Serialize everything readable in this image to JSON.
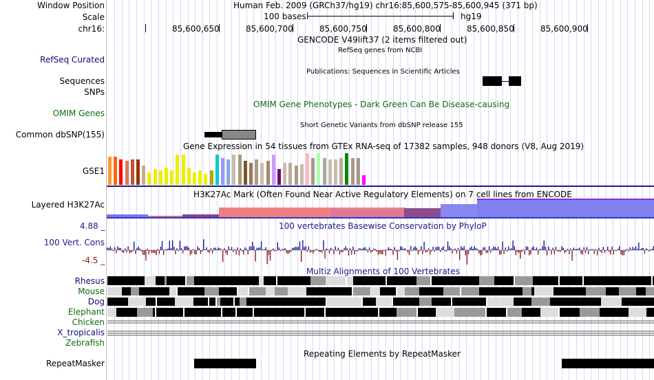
{
  "header": {
    "window_position_label": "Window Position",
    "window_position_value": "Human Feb. 2009 (GRCh37/hg19)   chr16:85,600,575-85,600,945 (371 bp)",
    "scale_label": "Scale",
    "scale_bases": "100 bases",
    "scale_assembly": "hg19",
    "chrom_label": "chr16:",
    "ruler_ticks": [
      "85,600,650",
      "85,600,700",
      "85,600,750",
      "85,600,800",
      "85,600,850",
      "85,600,900"
    ]
  },
  "tracks": {
    "gencode_title": "GENCODE V49lift37 (2 items filtered out)",
    "refseq_label": "RefSeq Curated",
    "refseq_title": "RefSeq genes from NCBI",
    "publications_title": "Publications: Sequences in Scientific Articles",
    "sequences_label": "Sequences",
    "snps_label": "SNPs",
    "omim_label": "OMIM Genes",
    "omim_title": "OMIM Gene Phenotypes - Dark Green Can Be Disease-causing",
    "dbsnp_title": "Short Genetic Variants from dbSNP release 155",
    "dbsnp_label": "Common dbSNP(155)",
    "gtex_title": "Gene Expression in 54 tissues from GTEx RNA-seq of 17382 samples, 948 donors (V8, Aug 2019)",
    "gtex_label": "GSE1",
    "h3k27ac_label": "Layered H3K27Ac",
    "h3k27ac_title": "H3K27Ac Mark (Often Found Near Active Regulatory Elements) on 7 cell lines from ENCODE",
    "cons_max": "4.88 _",
    "cons_label": "100 Vert. Cons",
    "cons_title": "100 vertebrates Basewise Conservation by PhyloP",
    "cons_min": "-4.5 _",
    "multiz_title": "Multiz Alignments of 100 Vertebrates",
    "species": [
      "Rhesus",
      "Mouse",
      "Dog",
      "Elephant",
      "Chicken",
      "X_tropicalis",
      "Zebrafish"
    ],
    "repeat_title": "Repeating Elements by RepeatMasker",
    "repeat_label": "RepeatMasker"
  },
  "gtex_colors": [
    "#ff9933",
    "#ff6600",
    "#ff0000",
    "#dd7755",
    "#bb5533",
    "#993300",
    "#ccaa88",
    "#eeee00",
    "#eeee00",
    "#eeee00",
    "#eeee00",
    "#eeee00",
    "#eeee00",
    "#eeee00",
    "#eeee00",
    "#eeee00",
    "#eeee00",
    "#eeee00",
    "#aaaa00",
    "#00cccc",
    "#9999ff",
    "#88aadd",
    "#ccbbaa",
    "#aa9977",
    "#775533",
    "#997755",
    "#aa9988",
    "#ccbbaa",
    "#aa8866",
    "#cc99ff",
    "#770077",
    "#ccbbaa",
    "#bbaa99",
    "#aa9988",
    "#ccbbaa",
    "#ffbbbb",
    "#aa9988",
    "#aaffaa",
    "#aaaa99",
    "#ccbbaa",
    "#ccbbaa",
    "#bbaa99",
    "#008800",
    "#aa9988",
    "#aa9988",
    "#ff00ff"
  ],
  "gtex_values": [
    0.9,
    0.9,
    0.8,
    0.75,
    0.8,
    0.8,
    0.6,
    0.4,
    0.5,
    0.45,
    0.55,
    0.45,
    0.95,
    0.95,
    0.55,
    0.4,
    0.45,
    0.35,
    0.45,
    0.95,
    0.85,
    0.8,
    0.95,
    0.95,
    0.75,
    0.7,
    0.8,
    0.7,
    0.75,
    0.95,
    0.5,
    0.7,
    0.7,
    0.6,
    0.65,
    1.0,
    0.85,
    1.0,
    0.85,
    0.8,
    0.8,
    0.85,
    1.0,
    0.85,
    0.85,
    0.3
  ],
  "colors": {
    "track_separator": "#1a1a8c",
    "conservation_pos": "#1a1a8c",
    "conservation_neg": "#8c1a1a",
    "label_blue": "#0c0c78",
    "label_green": "#0c6c0c"
  }
}
